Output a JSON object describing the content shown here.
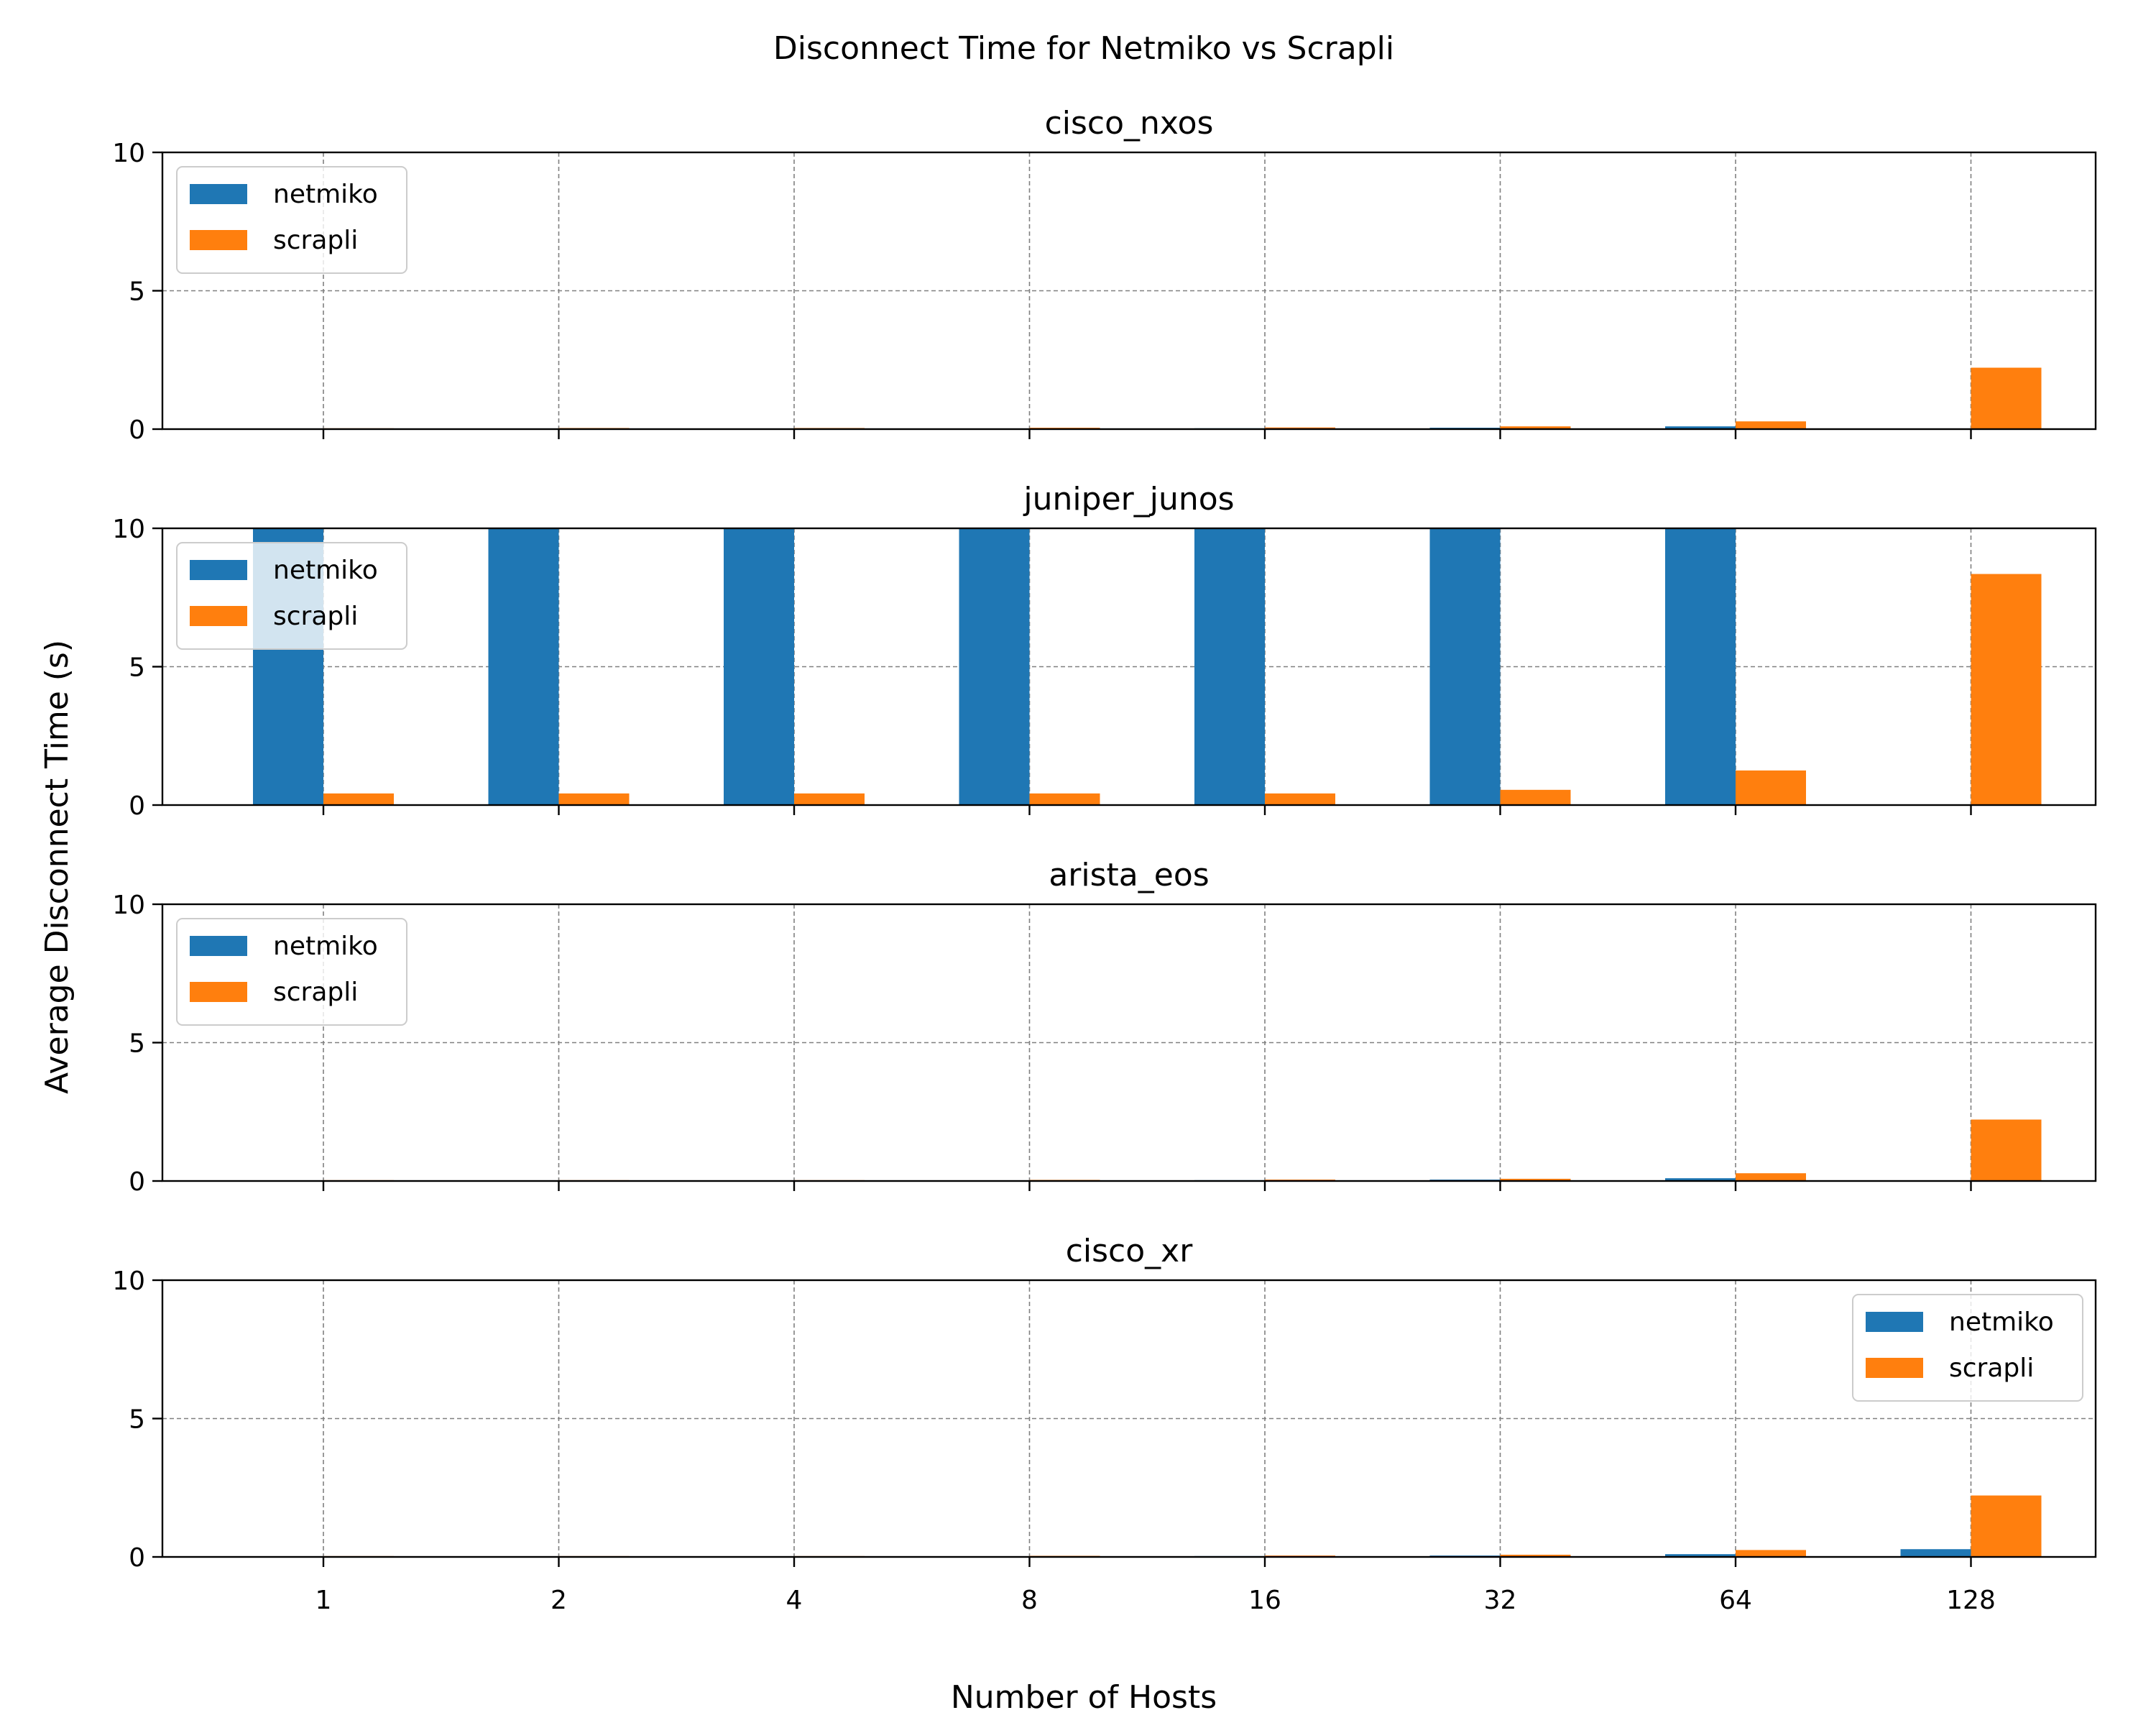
{
  "chart_data": {
    "type": "bar",
    "title": "Disconnect Time for Netmiko vs Scrapli",
    "xlabel": "Number of Hosts",
    "ylabel": "Average Disconnect Time (s)",
    "categories": [
      "1",
      "2",
      "4",
      "8",
      "16",
      "32",
      "64",
      "128"
    ],
    "ylim": [
      0,
      10
    ],
    "yticks": [
      "0",
      "5",
      "10"
    ],
    "grid": true,
    "colors": {
      "netmiko": "#1f77b4",
      "scrapli": "#ff7f0e"
    },
    "panels": [
      {
        "title": "cisco_nxos",
        "legend_position": "upper-left",
        "series": [
          {
            "name": "netmiko",
            "values": [
              0.02,
              0.02,
              0.02,
              0.02,
              0.03,
              0.05,
              0.1,
              0
            ]
          },
          {
            "name": "scrapli",
            "values": [
              0.03,
              0.04,
              0.04,
              0.05,
              0.06,
              0.1,
              0.28,
              2.22
            ]
          }
        ]
      },
      {
        "title": "juniper_junos",
        "legend_position": "upper-left",
        "series": [
          {
            "name": "netmiko",
            "values": [
              10.0,
              10.0,
              10.0,
              10.0,
              10.0,
              10.0,
              10.0,
              0
            ]
          },
          {
            "name": "scrapli",
            "values": [
              0.42,
              0.42,
              0.42,
              0.42,
              0.42,
              0.55,
              1.25,
              8.35
            ]
          }
        ]
      },
      {
        "title": "arista_eos",
        "legend_position": "upper-left",
        "series": [
          {
            "name": "netmiko",
            "values": [
              0.02,
              0.02,
              0.02,
              0.02,
              0.03,
              0.05,
              0.1,
              0
            ]
          },
          {
            "name": "scrapli",
            "values": [
              0.03,
              0.03,
              0.03,
              0.04,
              0.05,
              0.08,
              0.28,
              2.22
            ]
          }
        ]
      },
      {
        "title": "cisco_xr",
        "legend_position": "upper-right",
        "series": [
          {
            "name": "netmiko",
            "values": [
              0.02,
              0.02,
              0.02,
              0.02,
              0.03,
              0.05,
              0.1,
              0.28
            ]
          },
          {
            "name": "scrapli",
            "values": [
              0.03,
              0.03,
              0.03,
              0.04,
              0.05,
              0.08,
              0.25,
              2.22
            ]
          }
        ]
      }
    ]
  }
}
